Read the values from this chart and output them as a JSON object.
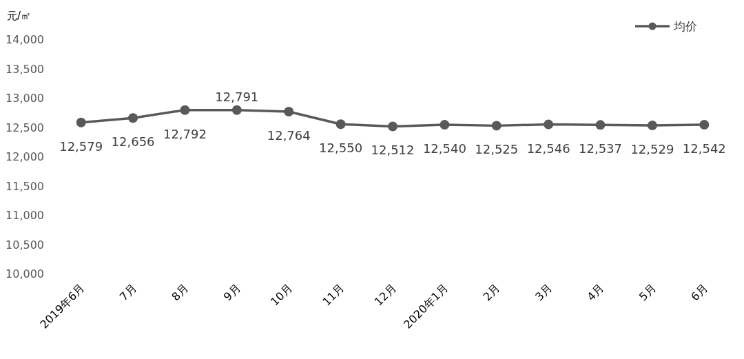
{
  "chart_data": {
    "type": "line",
    "ylabel": "元/㎡",
    "categories": [
      "2019年6月",
      "7月",
      "8月",
      "9月",
      "10月",
      "11月",
      "12月",
      "2020年1月",
      "2月",
      "3月",
      "4月",
      "5月",
      "6月"
    ],
    "series": [
      {
        "name": "均价",
        "color": "#595959",
        "values": [
          12579,
          12656,
          12792,
          12791,
          12764,
          12550,
          12512,
          12540,
          12525,
          12546,
          12537,
          12529,
          12542
        ],
        "value_labels": [
          "12,579",
          "12,656",
          "12,792",
          "12,791",
          "12,764",
          "12,550",
          "12,512",
          "12,540",
          "12,525",
          "12,546",
          "12,537",
          "12,529",
          "12,542"
        ]
      }
    ],
    "ylim": [
      10000,
      14000
    ],
    "yticks": [
      {
        "value": 10000,
        "label": "10,000"
      },
      {
        "value": 10500,
        "label": "10,500"
      },
      {
        "value": 11000,
        "label": "11,000"
      },
      {
        "value": 11500,
        "label": "11,500"
      },
      {
        "value": 12000,
        "label": "12,000"
      },
      {
        "value": 12500,
        "label": "12,500"
      },
      {
        "value": 13000,
        "label": "13,000"
      },
      {
        "value": 13500,
        "label": "13,500"
      },
      {
        "value": 14000,
        "label": "14,000"
      }
    ],
    "legend": "top right",
    "marker": "circle"
  }
}
